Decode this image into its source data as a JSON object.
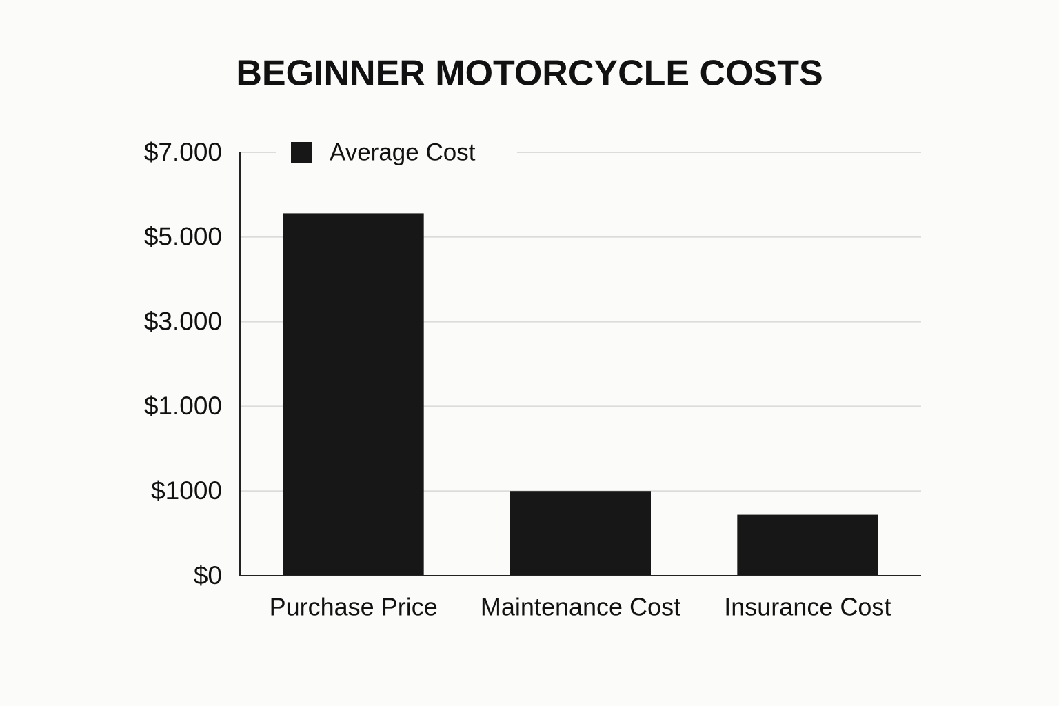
{
  "chart_data": {
    "type": "bar",
    "title": "BEGINNER MOTORCYCLE COSTS",
    "categories": [
      "Purchase Price",
      "Maintenance Cost",
      "Insurance Cost"
    ],
    "series": [
      {
        "name": "Average Cost",
        "color": "#171717",
        "values": [
          5560,
          1000,
          720
        ]
      }
    ],
    "ylim": [
      0,
      7000
    ],
    "yticks": [
      0,
      {
        "value": 1000,
        "label": "$1000"
      },
      {
        "value": 1000,
        "label": "$1.000"
      },
      {
        "value": 3000,
        "label": "$3.000"
      },
      {
        "value": 5000,
        "label": "$5.000"
      },
      {
        "value": 7000,
        "label": "$7.000"
      }
    ],
    "ytick_zero_label": "$0",
    "grid": true,
    "legend": "top-left"
  }
}
